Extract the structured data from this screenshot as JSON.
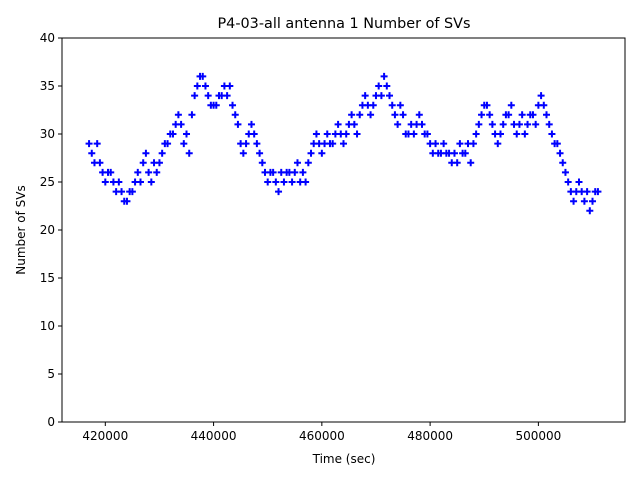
{
  "chart_data": {
    "type": "scatter",
    "title": "P4-03-all antenna 1 Number of SVs",
    "xlabel": "Time (sec)",
    "ylabel": "Number of SVs",
    "xlim": [
      412000,
      516000
    ],
    "ylim": [
      0,
      40
    ],
    "x_ticks": [
      420000,
      440000,
      460000,
      480000,
      500000
    ],
    "y_ticks": [
      0,
      5,
      10,
      15,
      20,
      25,
      30,
      35,
      40
    ],
    "grid": false,
    "marker": "+",
    "marker_color": "#0000ff",
    "series": [
      {
        "points": [
          [
            417000,
            29
          ],
          [
            417500,
            28
          ],
          [
            418000,
            27
          ],
          [
            418500,
            29
          ],
          [
            419000,
            27
          ],
          [
            419500,
            26
          ],
          [
            420000,
            25
          ],
          [
            420500,
            26
          ],
          [
            421000,
            26
          ],
          [
            421500,
            25
          ],
          [
            422000,
            24
          ],
          [
            422500,
            25
          ],
          [
            423000,
            24
          ],
          [
            423500,
            23
          ],
          [
            424000,
            23
          ],
          [
            424500,
            24
          ],
          [
            425000,
            24
          ],
          [
            425500,
            25
          ],
          [
            426000,
            26
          ],
          [
            426500,
            25
          ],
          [
            427000,
            27
          ],
          [
            427500,
            28
          ],
          [
            428000,
            26
          ],
          [
            428500,
            25
          ],
          [
            429000,
            27
          ],
          [
            429500,
            26
          ],
          [
            430000,
            27
          ],
          [
            430500,
            28
          ],
          [
            431000,
            29
          ],
          [
            431500,
            29
          ],
          [
            432000,
            30
          ],
          [
            432500,
            30
          ],
          [
            433000,
            31
          ],
          [
            433500,
            32
          ],
          [
            434000,
            31
          ],
          [
            434500,
            29
          ],
          [
            435000,
            30
          ],
          [
            435500,
            28
          ],
          [
            436000,
            32
          ],
          [
            436500,
            34
          ],
          [
            437000,
            35
          ],
          [
            437500,
            36
          ],
          [
            438000,
            36
          ],
          [
            438500,
            35
          ],
          [
            439000,
            34
          ],
          [
            439500,
            33
          ],
          [
            440000,
            33
          ],
          [
            440500,
            33
          ],
          [
            441000,
            34
          ],
          [
            441500,
            34
          ],
          [
            442000,
            35
          ],
          [
            442500,
            34
          ],
          [
            443000,
            35
          ],
          [
            443500,
            33
          ],
          [
            444000,
            32
          ],
          [
            444500,
            31
          ],
          [
            445000,
            29
          ],
          [
            445500,
            28
          ],
          [
            446000,
            29
          ],
          [
            446500,
            30
          ],
          [
            447000,
            31
          ],
          [
            447500,
            30
          ],
          [
            448000,
            29
          ],
          [
            448500,
            28
          ],
          [
            449000,
            27
          ],
          [
            449500,
            26
          ],
          [
            450000,
            25
          ],
          [
            450500,
            26
          ],
          [
            451000,
            26
          ],
          [
            451500,
            25
          ],
          [
            452000,
            24
          ],
          [
            452500,
            26
          ],
          [
            453000,
            25
          ],
          [
            453500,
            26
          ],
          [
            454000,
            26
          ],
          [
            454500,
            25
          ],
          [
            455000,
            26
          ],
          [
            455500,
            27
          ],
          [
            456000,
            25
          ],
          [
            456500,
            26
          ],
          [
            457000,
            25
          ],
          [
            457500,
            27
          ],
          [
            458000,
            28
          ],
          [
            458500,
            29
          ],
          [
            459000,
            30
          ],
          [
            459500,
            29
          ],
          [
            460000,
            28
          ],
          [
            460500,
            29
          ],
          [
            461000,
            30
          ],
          [
            461500,
            29
          ],
          [
            462000,
            29
          ],
          [
            462500,
            30
          ],
          [
            463000,
            31
          ],
          [
            463500,
            30
          ],
          [
            464000,
            29
          ],
          [
            464500,
            30
          ],
          [
            465000,
            31
          ],
          [
            465500,
            32
          ],
          [
            466000,
            31
          ],
          [
            466500,
            30
          ],
          [
            467000,
            32
          ],
          [
            467500,
            33
          ],
          [
            468000,
            34
          ],
          [
            468500,
            33
          ],
          [
            469000,
            32
          ],
          [
            469500,
            33
          ],
          [
            470000,
            34
          ],
          [
            470500,
            35
          ],
          [
            471000,
            34
          ],
          [
            471500,
            36
          ],
          [
            472000,
            35
          ],
          [
            472500,
            34
          ],
          [
            473000,
            33
          ],
          [
            473500,
            32
          ],
          [
            474000,
            31
          ],
          [
            474500,
            33
          ],
          [
            475000,
            32
          ],
          [
            475500,
            30
          ],
          [
            476000,
            30
          ],
          [
            476500,
            31
          ],
          [
            477000,
            30
          ],
          [
            477500,
            31
          ],
          [
            478000,
            32
          ],
          [
            478500,
            31
          ],
          [
            479000,
            30
          ],
          [
            479500,
            30
          ],
          [
            480000,
            29
          ],
          [
            480500,
            28
          ],
          [
            481000,
            29
          ],
          [
            481500,
            28
          ],
          [
            482000,
            28
          ],
          [
            482500,
            29
          ],
          [
            483000,
            28
          ],
          [
            483500,
            28
          ],
          [
            484000,
            27
          ],
          [
            484500,
            28
          ],
          [
            485000,
            27
          ],
          [
            485500,
            29
          ],
          [
            486000,
            28
          ],
          [
            486500,
            28
          ],
          [
            487000,
            29
          ],
          [
            487500,
            27
          ],
          [
            488000,
            29
          ],
          [
            488500,
            30
          ],
          [
            489000,
            31
          ],
          [
            489500,
            32
          ],
          [
            490000,
            33
          ],
          [
            490500,
            33
          ],
          [
            491000,
            32
          ],
          [
            491500,
            31
          ],
          [
            492000,
            30
          ],
          [
            492500,
            29
          ],
          [
            493000,
            30
          ],
          [
            493500,
            31
          ],
          [
            494000,
            32
          ],
          [
            494500,
            32
          ],
          [
            495000,
            33
          ],
          [
            495500,
            31
          ],
          [
            496000,
            30
          ],
          [
            496500,
            31
          ],
          [
            497000,
            32
          ],
          [
            497500,
            30
          ],
          [
            498000,
            31
          ],
          [
            498500,
            32
          ],
          [
            499000,
            32
          ],
          [
            499500,
            31
          ],
          [
            500000,
            33
          ],
          [
            500500,
            34
          ],
          [
            501000,
            33
          ],
          [
            501500,
            32
          ],
          [
            502000,
            31
          ],
          [
            502500,
            30
          ],
          [
            503000,
            29
          ],
          [
            503500,
            29
          ],
          [
            504000,
            28
          ],
          [
            504500,
            27
          ],
          [
            505000,
            26
          ],
          [
            505500,
            25
          ],
          [
            506000,
            24
          ],
          [
            506500,
            23
          ],
          [
            507000,
            24
          ],
          [
            507500,
            25
          ],
          [
            508000,
            24
          ],
          [
            508500,
            23
          ],
          [
            509000,
            24
          ],
          [
            509500,
            22
          ],
          [
            510000,
            23
          ],
          [
            510500,
            24
          ],
          [
            511000,
            24
          ]
        ]
      }
    ]
  }
}
